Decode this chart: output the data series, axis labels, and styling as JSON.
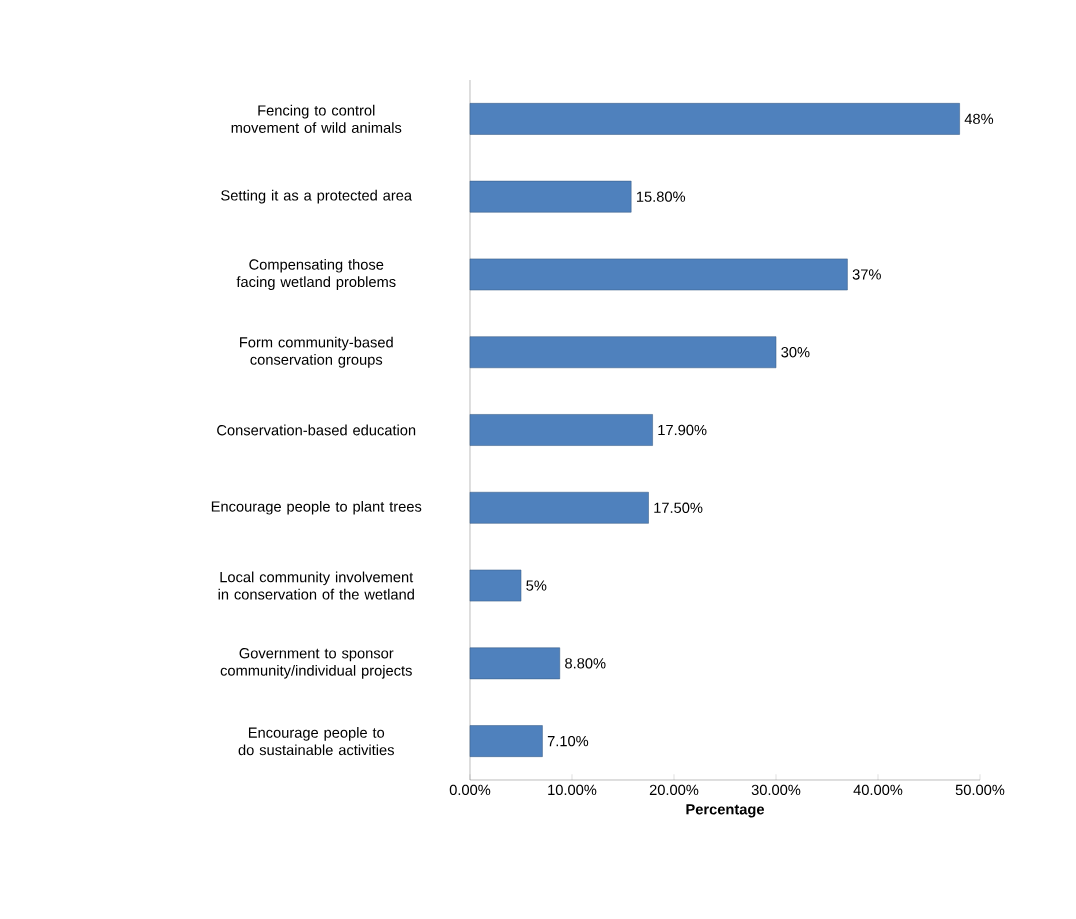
{
  "chart_data": {
    "type": "bar",
    "orientation": "horizontal",
    "categories": [
      "Fencing to control movement of wild animals",
      "Setting it as a protected area",
      "Compensating those facing wetland problems",
      "Form community-based conservation groups",
      "Conservation-based education",
      "Encourage people to plant trees",
      "Local community involvement in conservation of the wetland",
      "Government to sponsor community/individual projects",
      "Encourage people to do sustainable activities"
    ],
    "values": [
      48,
      15.8,
      37,
      30,
      17.9,
      17.5,
      5,
      8.8,
      7.1
    ],
    "value_labels": [
      "48%",
      "15.80%",
      "37%",
      "30%",
      "17.90%",
      "17.50%",
      "5%",
      "8.80%",
      "7.10%"
    ],
    "color": "#4f81bd",
    "xlim": [
      0,
      50
    ],
    "xticks": [
      {
        "value": 0,
        "label": "0.00%"
      },
      {
        "value": 10,
        "label": "10.00%"
      },
      {
        "value": 20,
        "label": "20.00%"
      },
      {
        "value": 30,
        "label": "30.00%"
      },
      {
        "value": 40,
        "label": "40.00%"
      },
      {
        "value": 50,
        "label": "50.00%"
      }
    ],
    "xlabel": "Percentage"
  }
}
